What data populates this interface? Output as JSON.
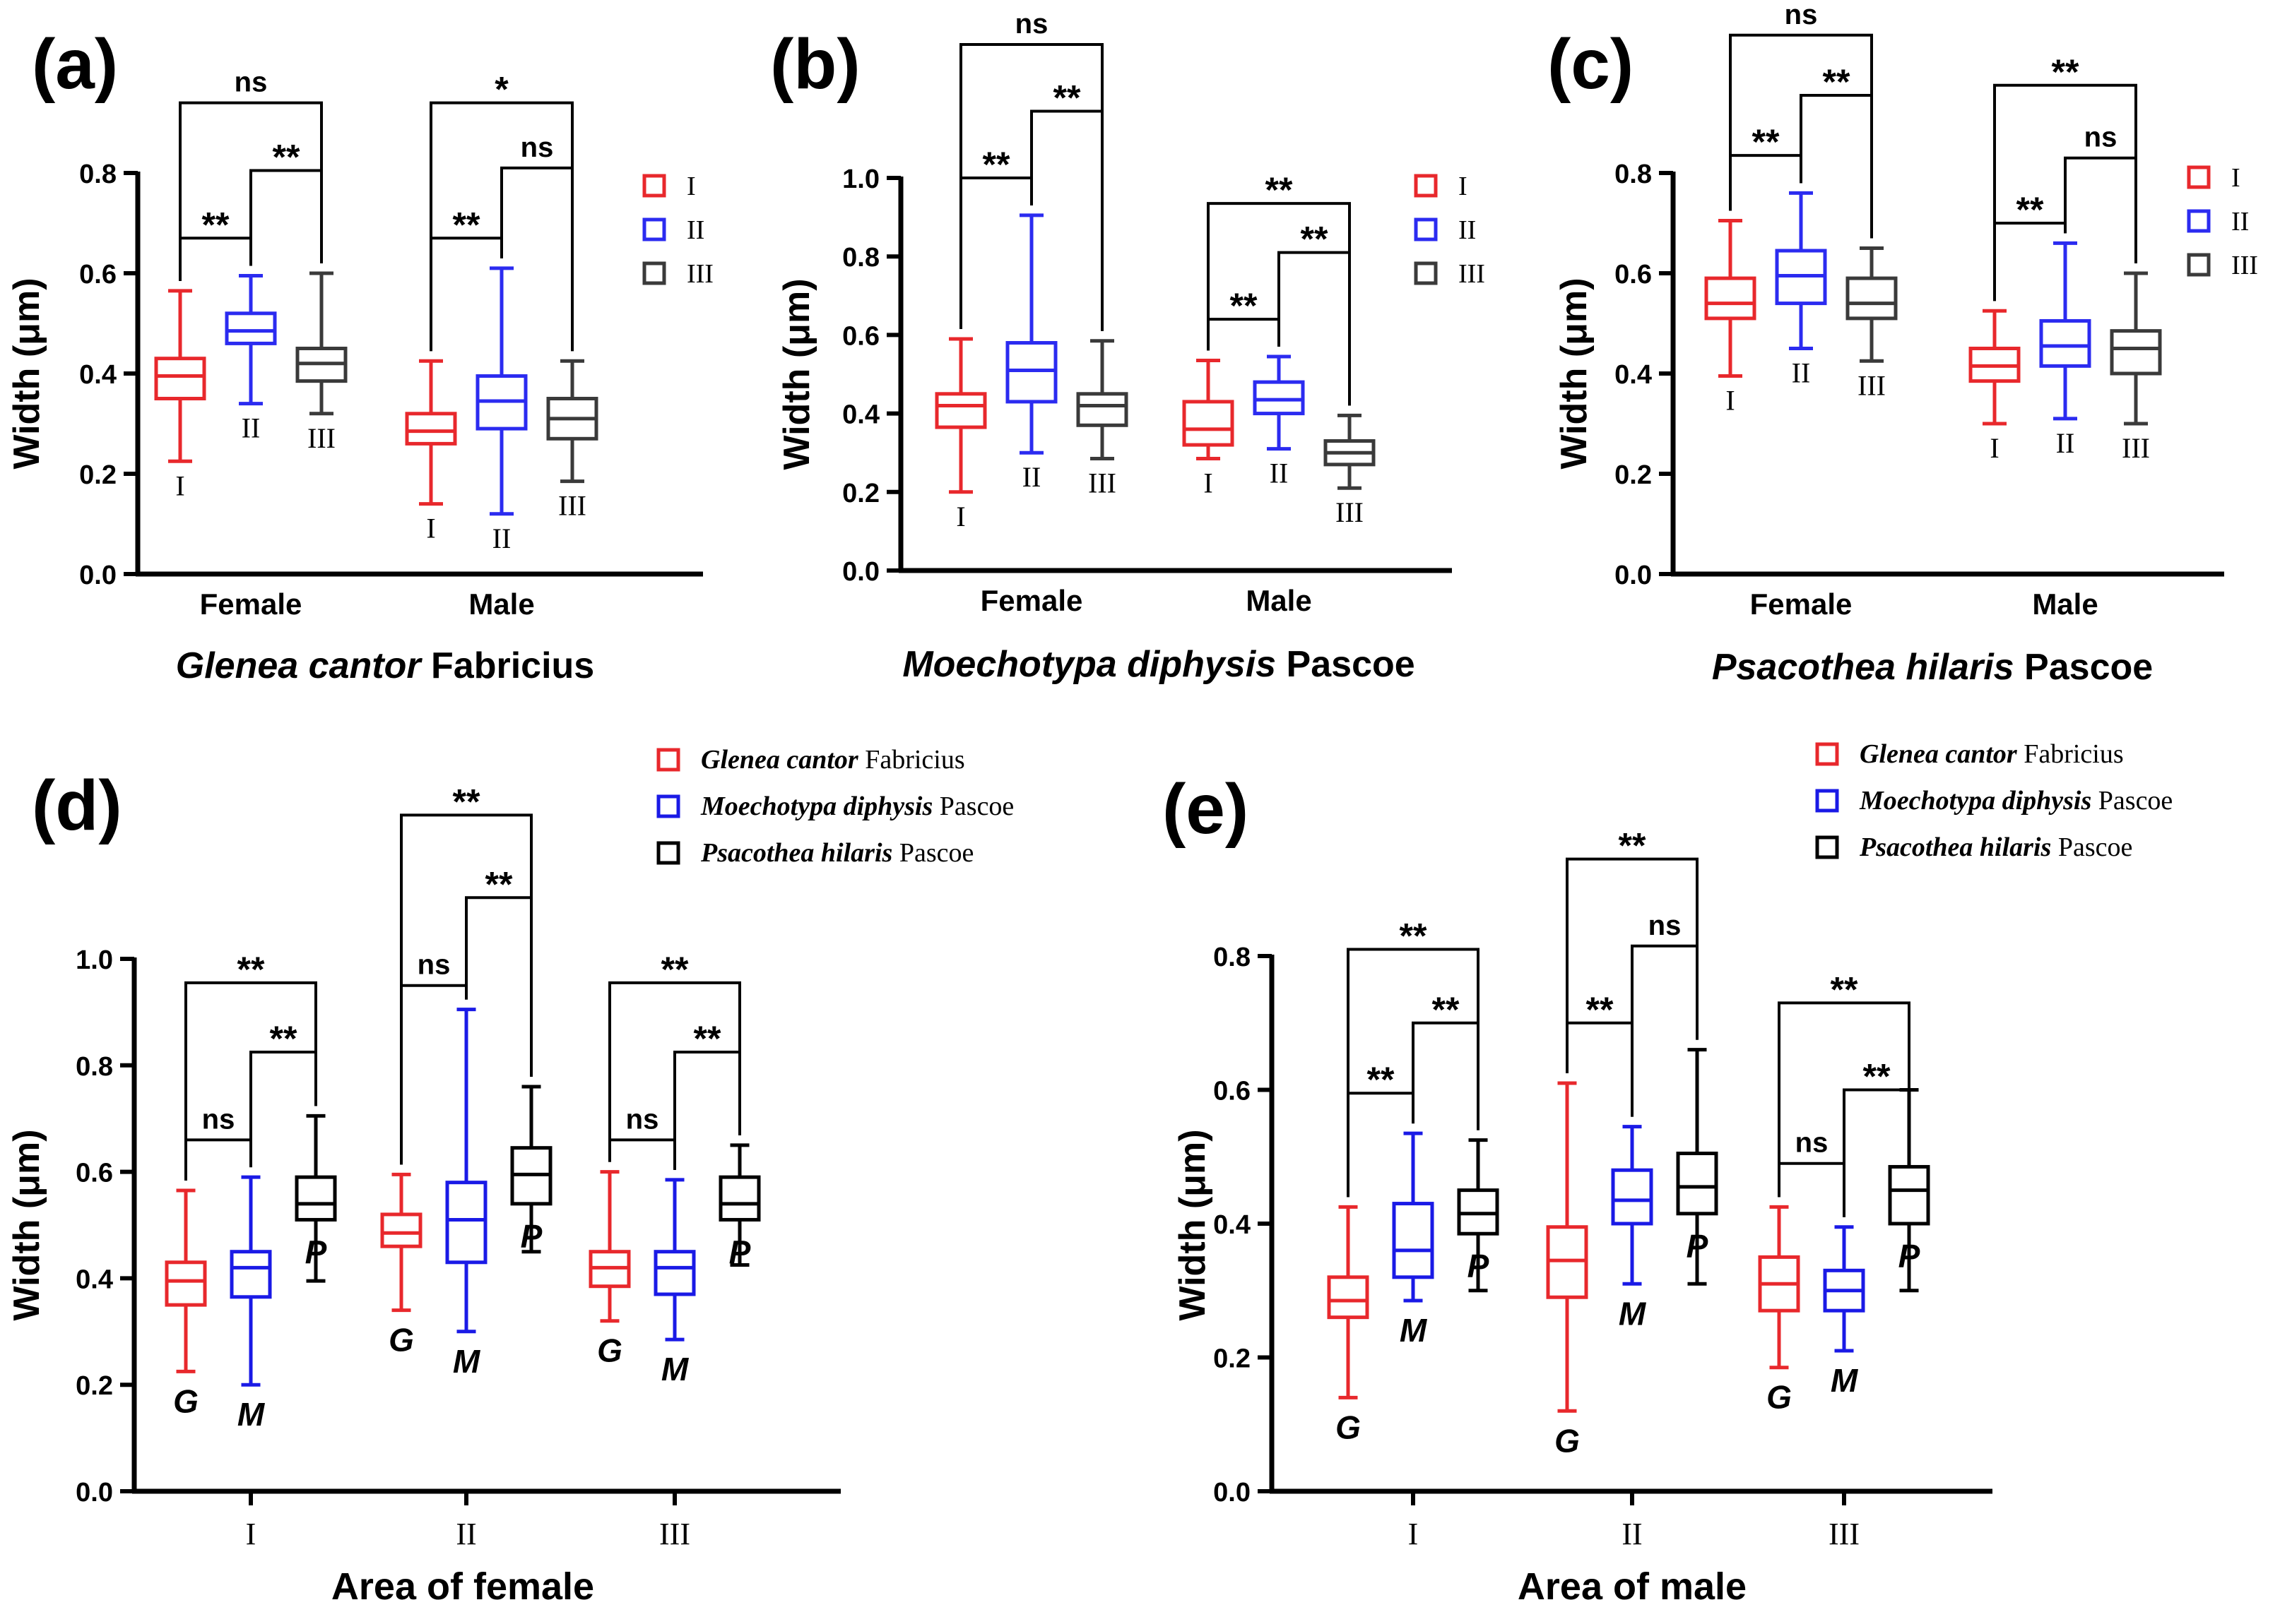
{
  "chart_data": [
    {
      "id": "a",
      "type": "boxplot",
      "panel_label": "(a)",
      "title": "",
      "caption_italic": "Glenea cantor",
      "caption_rest": " Fabricius",
      "ylabel": "Width (μm)",
      "xlabel": "",
      "ylim": [
        0,
        0.8
      ],
      "yticks": [
        0.0,
        0.2,
        0.4,
        0.6,
        0.8
      ],
      "ytick_labels": [
        "0.0",
        "0.2",
        "0.4",
        "0.6",
        "0.8"
      ],
      "groups": [
        "Female",
        "Male"
      ],
      "series_order": [
        "I",
        "II",
        "III"
      ],
      "boxes": [
        {
          "group": 0,
          "series": 0,
          "tag": "I",
          "min": 0.225,
          "q1": 0.35,
          "median": 0.395,
          "q3": 0.43,
          "max": 0.565,
          "color": "#e8282c"
        },
        {
          "group": 0,
          "series": 1,
          "tag": "II",
          "min": 0.34,
          "q1": 0.46,
          "median": 0.485,
          "q3": 0.52,
          "max": 0.595,
          "color": "#2b2bf0"
        },
        {
          "group": 0,
          "series": 2,
          "tag": "III",
          "min": 0.32,
          "q1": 0.385,
          "median": 0.42,
          "q3": 0.45,
          "max": 0.6,
          "color": "#3a3a3a"
        },
        {
          "group": 1,
          "series": 0,
          "tag": "I",
          "min": 0.14,
          "q1": 0.26,
          "median": 0.285,
          "q3": 0.32,
          "max": 0.425,
          "color": "#e8282c"
        },
        {
          "group": 1,
          "series": 1,
          "tag": "II",
          "min": 0.12,
          "q1": 0.29,
          "median": 0.345,
          "q3": 0.395,
          "max": 0.61,
          "color": "#2b2bf0"
        },
        {
          "group": 1,
          "series": 2,
          "tag": "III",
          "min": 0.185,
          "q1": 0.27,
          "median": 0.31,
          "q3": 0.35,
          "max": 0.425,
          "color": "#3a3a3a"
        }
      ],
      "significance": [
        {
          "group": 0,
          "from": 0,
          "to": 1,
          "text": "**",
          "level": 0.67
        },
        {
          "group": 0,
          "from": 1,
          "to": 2,
          "text": "**",
          "level": 0.805
        },
        {
          "group": 0,
          "from": 0,
          "to": 2,
          "text": "ns",
          "level": 0.94
        },
        {
          "group": 1,
          "from": 0,
          "to": 1,
          "text": "**",
          "level": 0.67
        },
        {
          "group": 1,
          "from": 1,
          "to": 2,
          "text": "ns",
          "level": 0.81
        },
        {
          "group": 1,
          "from": 0,
          "to": 2,
          "text": "*",
          "level": 0.94
        }
      ],
      "legend": [
        {
          "label": "I",
          "color": "#e8282c"
        },
        {
          "label": "II",
          "color": "#2b2bf0"
        },
        {
          "label": "III",
          "color": "#3a3a3a"
        }
      ]
    },
    {
      "id": "b",
      "type": "boxplot",
      "panel_label": "(b)",
      "title": "",
      "caption_italic": "Moechotypa diphysis",
      "caption_rest": " Pascoe",
      "ylabel": "Width (μm)",
      "xlabel": "",
      "ylim": [
        0,
        1.0
      ],
      "yticks": [
        0.0,
        0.2,
        0.4,
        0.6,
        0.8,
        1.0
      ],
      "ytick_labels": [
        "0.0",
        "0.2",
        "0.4",
        "0.6",
        "0.8",
        "1.0"
      ],
      "groups": [
        "Female",
        "Male"
      ],
      "series_order": [
        "I",
        "II",
        "III"
      ],
      "boxes": [
        {
          "group": 0,
          "series": 0,
          "tag": "I",
          "min": 0.2,
          "q1": 0.365,
          "median": 0.42,
          "q3": 0.45,
          "max": 0.59,
          "color": "#e8282c"
        },
        {
          "group": 0,
          "series": 1,
          "tag": "II",
          "min": 0.3,
          "q1": 0.43,
          "median": 0.51,
          "q3": 0.58,
          "max": 0.905,
          "color": "#2b2bf0"
        },
        {
          "group": 0,
          "series": 2,
          "tag": "III",
          "min": 0.285,
          "q1": 0.37,
          "median": 0.42,
          "q3": 0.45,
          "max": 0.585,
          "color": "#3a3a3a"
        },
        {
          "group": 1,
          "series": 0,
          "tag": "I",
          "min": 0.285,
          "q1": 0.32,
          "median": 0.36,
          "q3": 0.43,
          "max": 0.535,
          "color": "#e8282c"
        },
        {
          "group": 1,
          "series": 1,
          "tag": "II",
          "min": 0.31,
          "q1": 0.4,
          "median": 0.435,
          "q3": 0.48,
          "max": 0.545,
          "color": "#2b2bf0"
        },
        {
          "group": 1,
          "series": 2,
          "tag": "III",
          "min": 0.21,
          "q1": 0.27,
          "median": 0.3,
          "q3": 0.33,
          "max": 0.395,
          "color": "#3a3a3a"
        }
      ],
      "significance": [
        {
          "group": 0,
          "from": 0,
          "to": 1,
          "text": "**",
          "level": 1.0
        },
        {
          "group": 0,
          "from": 1,
          "to": 2,
          "text": "**",
          "level": 1.17
        },
        {
          "group": 0,
          "from": 0,
          "to": 2,
          "text": "ns",
          "level": 1.34
        },
        {
          "group": 1,
          "from": 0,
          "to": 1,
          "text": "**",
          "level": 0.64
        },
        {
          "group": 1,
          "from": 1,
          "to": 2,
          "text": "**",
          "level": 0.81
        },
        {
          "group": 1,
          "from": 0,
          "to": 2,
          "text": "**",
          "level": 0.935
        }
      ],
      "legend": [
        {
          "label": "I",
          "color": "#e8282c"
        },
        {
          "label": "II",
          "color": "#2b2bf0"
        },
        {
          "label": "III",
          "color": "#3a3a3a"
        }
      ]
    },
    {
      "id": "c",
      "type": "boxplot",
      "panel_label": "(c)",
      "title": "",
      "caption_italic": "Psacothea hilaris",
      "caption_rest": " Pascoe",
      "ylabel": "Width (μm)",
      "xlabel": "",
      "ylim": [
        0,
        0.8
      ],
      "yticks": [
        0.0,
        0.2,
        0.4,
        0.6,
        0.8
      ],
      "ytick_labels": [
        "0.0",
        "0.2",
        "0.4",
        "0.6",
        "0.8"
      ],
      "groups": [
        "Female",
        "Male"
      ],
      "series_order": [
        "I",
        "II",
        "III"
      ],
      "boxes": [
        {
          "group": 0,
          "series": 0,
          "tag": "I",
          "min": 0.395,
          "q1": 0.51,
          "median": 0.54,
          "q3": 0.59,
          "max": 0.705,
          "color": "#e8282c"
        },
        {
          "group": 0,
          "series": 1,
          "tag": "II",
          "min": 0.45,
          "q1": 0.54,
          "median": 0.595,
          "q3": 0.645,
          "max": 0.76,
          "color": "#2b2bf0"
        },
        {
          "group": 0,
          "series": 2,
          "tag": "III",
          "min": 0.425,
          "q1": 0.51,
          "median": 0.54,
          "q3": 0.59,
          "max": 0.65,
          "color": "#3a3a3a"
        },
        {
          "group": 1,
          "series": 0,
          "tag": "I",
          "min": 0.3,
          "q1": 0.385,
          "median": 0.415,
          "q3": 0.45,
          "max": 0.525,
          "color": "#e8282c"
        },
        {
          "group": 1,
          "series": 1,
          "tag": "II",
          "min": 0.31,
          "q1": 0.415,
          "median": 0.455,
          "q3": 0.505,
          "max": 0.66,
          "color": "#2b2bf0"
        },
        {
          "group": 1,
          "series": 2,
          "tag": "III",
          "min": 0.3,
          "q1": 0.4,
          "median": 0.45,
          "q3": 0.485,
          "max": 0.6,
          "color": "#3a3a3a"
        }
      ],
      "significance": [
        {
          "group": 0,
          "from": 0,
          "to": 1,
          "text": "**",
          "level": 0.835
        },
        {
          "group": 0,
          "from": 1,
          "to": 2,
          "text": "**",
          "level": 0.955
        },
        {
          "group": 0,
          "from": 0,
          "to": 2,
          "text": "ns",
          "level": 1.075
        },
        {
          "group": 1,
          "from": 0,
          "to": 1,
          "text": "**",
          "level": 0.7
        },
        {
          "group": 1,
          "from": 1,
          "to": 2,
          "text": "ns",
          "level": 0.83
        },
        {
          "group": 1,
          "from": 0,
          "to": 2,
          "text": "**",
          "level": 0.975
        }
      ],
      "legend": [
        {
          "label": "I",
          "color": "#e8282c"
        },
        {
          "label": "II",
          "color": "#2b2bf0"
        },
        {
          "label": "III",
          "color": "#3a3a3a"
        }
      ]
    },
    {
      "id": "d",
      "type": "boxplot",
      "panel_label": "(d)",
      "title": "",
      "caption_italic": "",
      "caption_rest": "",
      "ylabel": "Width (μm)",
      "xlabel": "Area of female",
      "ylim": [
        0,
        1.0
      ],
      "yticks": [
        0.0,
        0.2,
        0.4,
        0.6,
        0.8,
        1.0
      ],
      "ytick_labels": [
        "0.0",
        "0.2",
        "0.4",
        "0.6",
        "0.8",
        "1.0"
      ],
      "groups": [
        "I",
        "II",
        "III"
      ],
      "series_order": [
        "G",
        "M",
        "P"
      ],
      "boxes": [
        {
          "group": 0,
          "series": 0,
          "tag": "G",
          "min": 0.225,
          "q1": 0.35,
          "median": 0.395,
          "q3": 0.43,
          "max": 0.565,
          "color": "#e8282c"
        },
        {
          "group": 0,
          "series": 1,
          "tag": "M",
          "min": 0.2,
          "q1": 0.365,
          "median": 0.42,
          "q3": 0.45,
          "max": 0.59,
          "color": "#1a1ae6"
        },
        {
          "group": 0,
          "series": 2,
          "tag": "P",
          "min": 0.395,
          "q1": 0.51,
          "median": 0.54,
          "q3": 0.59,
          "max": 0.705,
          "color": "#000000"
        },
        {
          "group": 1,
          "series": 0,
          "tag": "G",
          "min": 0.34,
          "q1": 0.46,
          "median": 0.485,
          "q3": 0.52,
          "max": 0.595,
          "color": "#e8282c"
        },
        {
          "group": 1,
          "series": 1,
          "tag": "M",
          "min": 0.3,
          "q1": 0.43,
          "median": 0.51,
          "q3": 0.58,
          "max": 0.905,
          "color": "#1a1ae6"
        },
        {
          "group": 1,
          "series": 2,
          "tag": "P",
          "min": 0.45,
          "q1": 0.54,
          "median": 0.595,
          "q3": 0.645,
          "max": 0.76,
          "color": "#000000"
        },
        {
          "group": 2,
          "series": 0,
          "tag": "G",
          "min": 0.32,
          "q1": 0.385,
          "median": 0.42,
          "q3": 0.45,
          "max": 0.6,
          "color": "#e8282c"
        },
        {
          "group": 2,
          "series": 1,
          "tag": "M",
          "min": 0.285,
          "q1": 0.37,
          "median": 0.42,
          "q3": 0.45,
          "max": 0.585,
          "color": "#1a1ae6"
        },
        {
          "group": 2,
          "series": 2,
          "tag": "P",
          "min": 0.425,
          "q1": 0.51,
          "median": 0.54,
          "q3": 0.59,
          "max": 0.65,
          "color": "#000000"
        }
      ],
      "significance": [
        {
          "group": 0,
          "from": 0,
          "to": 1,
          "text": "ns",
          "level": 0.66
        },
        {
          "group": 0,
          "from": 1,
          "to": 2,
          "text": "**",
          "level": 0.825
        },
        {
          "group": 0,
          "from": 0,
          "to": 2,
          "text": "**",
          "level": 0.955
        },
        {
          "group": 1,
          "from": 0,
          "to": 1,
          "text": "ns",
          "level": 0.95
        },
        {
          "group": 1,
          "from": 1,
          "to": 2,
          "text": "**",
          "level": 1.115
        },
        {
          "group": 1,
          "from": 0,
          "to": 2,
          "text": "**",
          "level": 1.27
        },
        {
          "group": 2,
          "from": 0,
          "to": 1,
          "text": "ns",
          "level": 0.66
        },
        {
          "group": 2,
          "from": 1,
          "to": 2,
          "text": "**",
          "level": 0.825
        },
        {
          "group": 2,
          "from": 0,
          "to": 2,
          "text": "**",
          "level": 0.955
        }
      ],
      "legend": [
        {
          "italic": "Glenea cantor",
          "rest": " Fabricius",
          "color": "#e8282c"
        },
        {
          "italic": "Moechotypa diphysis",
          "rest": " Pascoe",
          "color": "#1a1ae6"
        },
        {
          "italic": "Psacothea hilaris",
          "rest": " Pascoe",
          "color": "#000000"
        }
      ]
    },
    {
      "id": "e",
      "type": "boxplot",
      "panel_label": "(e)",
      "title": "",
      "caption_italic": "",
      "caption_rest": "",
      "ylabel": "Width (μm)",
      "xlabel": "Area of male",
      "ylim": [
        0,
        0.8
      ],
      "yticks": [
        0.0,
        0.2,
        0.4,
        0.6,
        0.8
      ],
      "ytick_labels": [
        "0.0",
        "0.2",
        "0.4",
        "0.6",
        "0.8"
      ],
      "groups": [
        "I",
        "II",
        "III"
      ],
      "series_order": [
        "G",
        "M",
        "P"
      ],
      "boxes": [
        {
          "group": 0,
          "series": 0,
          "tag": "G",
          "min": 0.14,
          "q1": 0.26,
          "median": 0.285,
          "q3": 0.32,
          "max": 0.425,
          "color": "#e8282c"
        },
        {
          "group": 0,
          "series": 1,
          "tag": "M",
          "min": 0.285,
          "q1": 0.32,
          "median": 0.36,
          "q3": 0.43,
          "max": 0.535,
          "color": "#1a1ae6"
        },
        {
          "group": 0,
          "series": 2,
          "tag": "P",
          "min": 0.3,
          "q1": 0.385,
          "median": 0.415,
          "q3": 0.45,
          "max": 0.525,
          "color": "#000000"
        },
        {
          "group": 1,
          "series": 0,
          "tag": "G",
          "min": 0.12,
          "q1": 0.29,
          "median": 0.345,
          "q3": 0.395,
          "max": 0.61,
          "color": "#e8282c"
        },
        {
          "group": 1,
          "series": 1,
          "tag": "M",
          "min": 0.31,
          "q1": 0.4,
          "median": 0.435,
          "q3": 0.48,
          "max": 0.545,
          "color": "#1a1ae6"
        },
        {
          "group": 1,
          "series": 2,
          "tag": "P",
          "min": 0.31,
          "q1": 0.415,
          "median": 0.455,
          "q3": 0.505,
          "max": 0.66,
          "color": "#000000"
        },
        {
          "group": 2,
          "series": 0,
          "tag": "G",
          "min": 0.185,
          "q1": 0.27,
          "median": 0.31,
          "q3": 0.35,
          "max": 0.425,
          "color": "#e8282c"
        },
        {
          "group": 2,
          "series": 1,
          "tag": "M",
          "min": 0.21,
          "q1": 0.27,
          "median": 0.3,
          "q3": 0.33,
          "max": 0.395,
          "color": "#1a1ae6"
        },
        {
          "group": 2,
          "series": 2,
          "tag": "P",
          "min": 0.3,
          "q1": 0.4,
          "median": 0.45,
          "q3": 0.485,
          "max": 0.6,
          "color": "#000000"
        }
      ],
      "significance": [
        {
          "group": 0,
          "from": 0,
          "to": 1,
          "text": "**",
          "level": 0.595
        },
        {
          "group": 0,
          "from": 1,
          "to": 2,
          "text": "**",
          "level": 0.7
        },
        {
          "group": 0,
          "from": 0,
          "to": 2,
          "text": "**",
          "level": 0.81
        },
        {
          "group": 1,
          "from": 0,
          "to": 1,
          "text": "**",
          "level": 0.7
        },
        {
          "group": 1,
          "from": 1,
          "to": 2,
          "text": "ns",
          "level": 0.815
        },
        {
          "group": 1,
          "from": 0,
          "to": 2,
          "text": "**",
          "level": 0.945
        },
        {
          "group": 2,
          "from": 0,
          "to": 1,
          "text": "ns",
          "level": 0.49
        },
        {
          "group": 2,
          "from": 1,
          "to": 2,
          "text": "**",
          "level": 0.6
        },
        {
          "group": 2,
          "from": 0,
          "to": 2,
          "text": "**",
          "level": 0.73
        }
      ],
      "legend": [
        {
          "italic": "Glenea cantor",
          "rest": " Fabricius",
          "color": "#e8282c"
        },
        {
          "italic": "Moechotypa diphysis",
          "rest": " Pascoe",
          "color": "#1a1ae6"
        },
        {
          "italic": "Psacothea hilaris",
          "rest": " Pascoe",
          "color": "#000000"
        }
      ]
    }
  ]
}
